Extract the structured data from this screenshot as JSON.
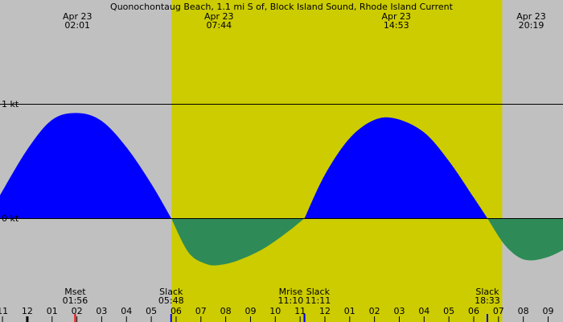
{
  "chart_data": {
    "type": "area",
    "title": "Quonochontaug Beach, 1.1 mi S of, Block Island Sound, Rhode Island Current",
    "xlabel": "",
    "ylabel": "",
    "unit": "kt",
    "x_range_hours": [
      -1.1,
      21.6
    ],
    "y_range": [
      -1.0,
      1.0
    ],
    "y_ticks": [
      {
        "value": 1,
        "label": "1 kt"
      },
      {
        "value": 0,
        "label": "0 kt"
      }
    ],
    "daylight": {
      "start": 5.82,
      "end": 19.15
    },
    "top_events": [
      {
        "date": "Apr 23",
        "time": "02:01",
        "hour": 2.02
      },
      {
        "date": "Apr 23",
        "time": "07:44",
        "hour": 7.73
      },
      {
        "date": "Apr 23",
        "time": "14:53",
        "hour": 14.88
      },
      {
        "date": "Apr 23",
        "time": "20:19",
        "hour": 20.32
      }
    ],
    "bottom_events": [
      {
        "label": "Mset",
        "time": "01:56",
        "hour": 1.93
      },
      {
        "label": "Slack",
        "time": "05:48",
        "hour": 5.8
      },
      {
        "label": "Mrise",
        "time": "11:10",
        "hour": 11.17
      },
      {
        "label": "Slack",
        "time": "11:11",
        "hour": 11.18
      },
      {
        "label": "Slack",
        "time": "18:33",
        "hour": 18.55
      }
    ],
    "hour_ticks": [
      {
        "label": "11",
        "hour": -1
      },
      {
        "label": "12",
        "hour": 0
      },
      {
        "label": "01",
        "hour": 1
      },
      {
        "label": "02",
        "hour": 2
      },
      {
        "label": "03",
        "hour": 3
      },
      {
        "label": "04",
        "hour": 4
      },
      {
        "label": "05",
        "hour": 5
      },
      {
        "label": "06",
        "hour": 6
      },
      {
        "label": "07",
        "hour": 7
      },
      {
        "label": "08",
        "hour": 8
      },
      {
        "label": "09",
        "hour": 9
      },
      {
        "label": "10",
        "hour": 10
      },
      {
        "label": "11",
        "hour": 11
      },
      {
        "label": "12",
        "hour": 12
      },
      {
        "label": "01",
        "hour": 13
      },
      {
        "label": "02",
        "hour": 14
      },
      {
        "label": "03",
        "hour": 15
      },
      {
        "label": "04",
        "hour": 16
      },
      {
        "label": "05",
        "hour": 17
      },
      {
        "label": "06",
        "hour": 18
      },
      {
        "label": "07",
        "hour": 19
      },
      {
        "label": "08",
        "hour": 20
      },
      {
        "label": "09",
        "hour": 21
      }
    ],
    "series": [
      {
        "kind": "flood",
        "values": [
          {
            "x": -1.1,
            "y": 0.2
          },
          {
            "x": 0,
            "y": 0.6
          },
          {
            "x": 1,
            "y": 0.86
          },
          {
            "x": 2.02,
            "y": 0.92
          },
          {
            "x": 3,
            "y": 0.85
          },
          {
            "x": 4,
            "y": 0.62
          },
          {
            "x": 5,
            "y": 0.3
          },
          {
            "x": 5.8,
            "y": 0
          }
        ]
      },
      {
        "kind": "ebb",
        "values": [
          {
            "x": 5.8,
            "y": 0
          },
          {
            "x": 6.5,
            "y": -0.3
          },
          {
            "x": 7.2,
            "y": -0.4
          },
          {
            "x": 7.73,
            "y": -0.41
          },
          {
            "x": 8.5,
            "y": -0.37
          },
          {
            "x": 9.5,
            "y": -0.27
          },
          {
            "x": 10.5,
            "y": -0.12
          },
          {
            "x": 11.18,
            "y": 0
          }
        ]
      },
      {
        "kind": "flood",
        "values": [
          {
            "x": 11.18,
            "y": 0
          },
          {
            "x": 12,
            "y": 0.38
          },
          {
            "x": 13,
            "y": 0.7
          },
          {
            "x": 14,
            "y": 0.86
          },
          {
            "x": 14.88,
            "y": 0.87
          },
          {
            "x": 16,
            "y": 0.75
          },
          {
            "x": 17,
            "y": 0.5
          },
          {
            "x": 18,
            "y": 0.18
          },
          {
            "x": 18.55,
            "y": 0
          }
        ]
      },
      {
        "kind": "ebb",
        "values": [
          {
            "x": 18.55,
            "y": 0
          },
          {
            "x": 19.2,
            "y": -0.22
          },
          {
            "x": 19.8,
            "y": -0.34
          },
          {
            "x": 20.32,
            "y": -0.37
          },
          {
            "x": 21,
            "y": -0.34
          },
          {
            "x": 21.6,
            "y": -0.28
          }
        ]
      }
    ],
    "colors": {
      "background": "#c0c0c0",
      "daylight": "#cccc00",
      "flood": "#0000ff",
      "ebb": "#2e8b57",
      "moon_marker": "#ff0000"
    },
    "grid": false,
    "legend": "none"
  }
}
